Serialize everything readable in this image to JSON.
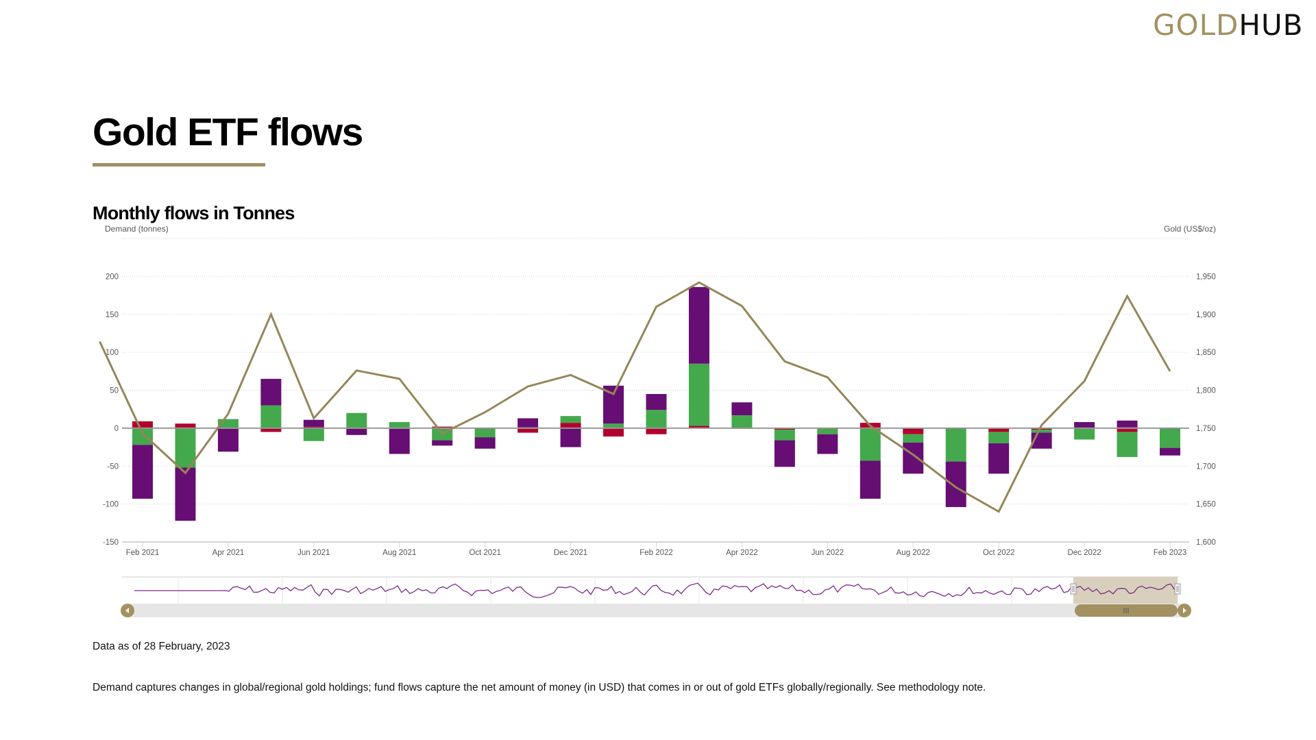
{
  "header": {
    "logo_part1": "GOLD",
    "logo_part2": "HUB"
  },
  "page_title": "Gold ETF flows",
  "chart_title": "Monthly flows in Tonnes",
  "footer": {
    "data_as_of": "Data as of 28 February, 2023",
    "description": "Demand captures changes in global/regional gold holdings; fund flows capture the net amount of money (in USD) that comes in or out of gold ETFs globally/regionally. See methodology note."
  },
  "colors": {
    "accent": "#a39161",
    "purple": "#660e73",
    "green": "#44a94c",
    "red": "#b3002d",
    "dark": "#1d1247",
    "line": "#958659"
  },
  "chart_data": {
    "type": "bar",
    "stacked": true,
    "ylabel": "Demand (tonnes)",
    "y2label": "Gold (US$/oz)",
    "ylim": [
      -150,
      250
    ],
    "y2lim": [
      1600,
      2000
    ],
    "yticks": [
      "-150",
      "-100",
      "-50",
      "0",
      "50",
      "100",
      "150",
      "200"
    ],
    "y2ticks": [
      "1,600",
      "1,650",
      "1,700",
      "1,750",
      "1,800",
      "1,850",
      "1,900",
      "1,950"
    ],
    "grid": true,
    "categories": [
      "Feb 2021",
      "Mar 2021",
      "Apr 2021",
      "May 2021",
      "Jun 2021",
      "Jul 2021",
      "Aug 2021",
      "Sep 2021",
      "Oct 2021",
      "Nov 2021",
      "Dec 2021",
      "Jan 2022",
      "Feb 2022",
      "Mar 2022",
      "Apr 2022",
      "May 2022",
      "Jun 2022",
      "Jul 2022",
      "Aug 2022",
      "Sep 2022",
      "Oct 2022",
      "Nov 2022",
      "Dec 2022",
      "Jan 2023",
      "Feb 2023"
    ],
    "xtick_labels": [
      "Feb 2021",
      "Apr 2021",
      "Jun 2021",
      "Aug 2021",
      "Oct 2021",
      "Dec 2021",
      "Feb 2022",
      "Apr 2022",
      "Jun 2022",
      "Aug 2022",
      "Oct 2022",
      "Dec 2022",
      "Feb 2023"
    ],
    "series": [
      {
        "color": "#1d1247",
        "values": [
          0,
          -1,
          0,
          -1,
          -1,
          0,
          0,
          0,
          0,
          0,
          -1,
          0,
          0,
          0,
          0,
          0,
          0,
          -1,
          -1,
          -1,
          0,
          -1,
          0,
          1,
          -1
        ]
      },
      {
        "color": "#b3002d",
        "values": [
          9,
          6,
          -1,
          -4,
          2,
          -1,
          -1,
          2,
          -1,
          -6,
          7,
          -11,
          -8,
          3,
          -1,
          -2,
          -1,
          7,
          -7,
          0,
          -5,
          -1,
          -1,
          -5,
          0
        ]
      },
      {
        "color": "#44a94c",
        "values": [
          -22,
          -51,
          12,
          30,
          -16,
          20,
          8,
          -16,
          -11,
          1,
          9,
          6,
          24,
          82,
          17,
          -14,
          -7,
          -42,
          -11,
          -43,
          -15,
          -4,
          -14,
          -33,
          -25
        ]
      },
      {
        "color": "#660e73",
        "values": [
          -71,
          -70,
          -30,
          35,
          9,
          -8,
          -33,
          -7,
          -15,
          12,
          -24,
          50,
          21,
          101,
          17,
          -35,
          -26,
          -50,
          -41,
          -60,
          -40,
          -21,
          8,
          9,
          -10
        ]
      }
    ],
    "line": {
      "axis": "right",
      "color": "#958659",
      "x": [
        "Jan 2021",
        "Feb 2021",
        "Mar 2021",
        "Apr 2021",
        "May 2021",
        "Jun 2021",
        "Jul 2021",
        "Aug 2021",
        "Sep 2021",
        "Oct 2021",
        "Nov 2021",
        "Dec 2021",
        "Jan 2022",
        "Feb 2022",
        "Mar 2022",
        "Apr 2022",
        "May 2022",
        "Jun 2022",
        "Jul 2022",
        "Aug 2022",
        "Sep 2022",
        "Oct 2022",
        "Nov 2022",
        "Dec 2022",
        "Jan 2023",
        "Feb 2023"
      ],
      "values": [
        1864,
        1743,
        1691,
        1769,
        1900,
        1763,
        1826,
        1815,
        1743,
        1771,
        1805,
        1820,
        1795,
        1910,
        1942,
        1911,
        1838,
        1817,
        1753,
        1715,
        1672,
        1640,
        1754,
        1812,
        1924,
        1825
      ]
    },
    "navigator": {
      "selected_range": [
        "Feb 2021",
        "Feb 2023"
      ]
    }
  }
}
